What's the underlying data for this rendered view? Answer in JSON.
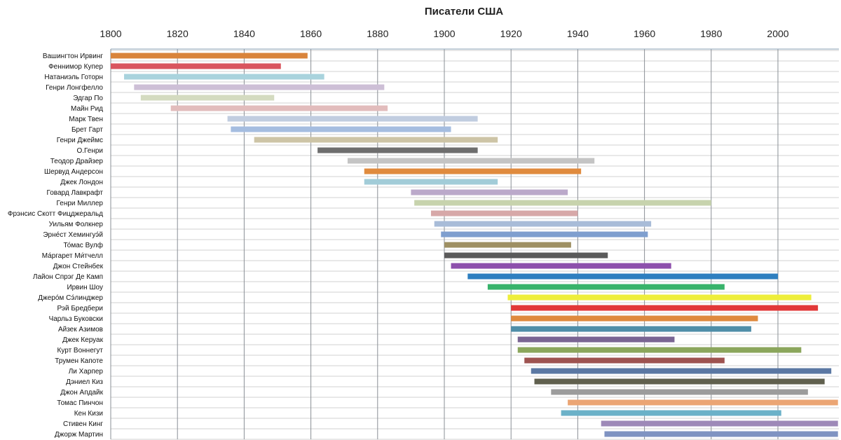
{
  "chart_data": {
    "type": "bar",
    "subtype": "timeline",
    "title": "Писатели США",
    "xlim": [
      1800,
      2018
    ],
    "x_ticks": [
      "1800",
      "1820",
      "1840",
      "1860",
      "1880",
      "1900",
      "1920",
      "1940",
      "1960",
      "1980",
      "2000"
    ],
    "x_axis_position": "top",
    "grid": {
      "vertical": true,
      "horizontal": true
    },
    "legend": "none",
    "series": [
      {
        "label": "Вашингтон Ирвинг",
        "start": 1800,
        "end": 1859,
        "color": "#d9843b"
      },
      {
        "label": "Феннимор Купер",
        "start": 1800,
        "end": 1851,
        "color": "#d9555e"
      },
      {
        "label": "Натаниэль Готорн",
        "start": 1804,
        "end": 1864,
        "color": "#a9d3dd"
      },
      {
        "label": "Генри Лонгфелло",
        "start": 1807,
        "end": 1882,
        "color": "#cdbfd6"
      },
      {
        "label": "Эдгар По",
        "start": 1809,
        "end": 1849,
        "color": "#d4dbc0"
      },
      {
        "label": "Майн Рид",
        "start": 1818,
        "end": 1883,
        "color": "#e2bcbc"
      },
      {
        "label": "Марк Твен",
        "start": 1835,
        "end": 1910,
        "color": "#c1cde0"
      },
      {
        "label": "Брет Гарт",
        "start": 1836,
        "end": 1902,
        "color": "#a5bde0"
      },
      {
        "label": "Генри Джеймс",
        "start": 1843,
        "end": 1916,
        "color": "#cdc4a6"
      },
      {
        "label": "О.Генри",
        "start": 1862,
        "end": 1910,
        "color": "#6e6e6e"
      },
      {
        "label": "Теодор Драйзер",
        "start": 1871,
        "end": 1945,
        "color": "#c4c4c4"
      },
      {
        "label": "Шервуд Андерсон",
        "start": 1876,
        "end": 1941,
        "color": "#e08b3e"
      },
      {
        "label": "Джек Лондон",
        "start": 1876,
        "end": 1916,
        "color": "#a2ccd8"
      },
      {
        "label": "Говард Лавкрафт",
        "start": 1890,
        "end": 1937,
        "color": "#bba9ca"
      },
      {
        "label": "Генри Миллер",
        "start": 1891,
        "end": 1980,
        "color": "#c7d3ad"
      },
      {
        "label": "Фрэнсис Скотт Фицджеральд",
        "start": 1896,
        "end": 1940,
        "color": "#d7a8a8"
      },
      {
        "label": "Уильям Фолкнер",
        "start": 1897,
        "end": 1962,
        "color": "#a8bcd8"
      },
      {
        "label": "Эрне́ст Хемингуэ́й",
        "start": 1899,
        "end": 1961,
        "color": "#7f9fcf"
      },
      {
        "label": "То́мас Вулф",
        "start": 1900,
        "end": 1938,
        "color": "#9e9063"
      },
      {
        "label": "Ма́ргарет Ми́тчелл",
        "start": 1900,
        "end": 1949,
        "color": "#5a5a5a"
      },
      {
        "label": "Джон Стейнбек",
        "start": 1902,
        "end": 1968,
        "color": "#8d4fac"
      },
      {
        "label": "Лайон Спрэг Де Камп",
        "start": 1907,
        "end": 2000,
        "color": "#2e7fc0"
      },
      {
        "label": "Ирвин Шоу",
        "start": 1913,
        "end": 1984,
        "color": "#38b36b"
      },
      {
        "label": "Джеро́м Сэ́линджер",
        "start": 1919,
        "end": 2010,
        "color": "#eeee3a"
      },
      {
        "label": "Рэй Бредбери",
        "start": 1920,
        "end": 2012,
        "color": "#e23838"
      },
      {
        "label": "Чарльз Буковски",
        "start": 1920,
        "end": 1994,
        "color": "#df8a3e"
      },
      {
        "label": "Айзек Азимов",
        "start": 1920,
        "end": 1992,
        "color": "#4f8ea8"
      },
      {
        "label": "Джек Керуак",
        "start": 1922,
        "end": 1969,
        "color": "#7a6593"
      },
      {
        "label": "Курт Воннегут",
        "start": 1922,
        "end": 2007,
        "color": "#8ba65c"
      },
      {
        "label": "Трумен Капоте",
        "start": 1924,
        "end": 1984,
        "color": "#9e5350"
      },
      {
        "label": "Ли Харпер",
        "start": 1926,
        "end": 2016,
        "color": "#5b78a3"
      },
      {
        "label": "Дэниел Киз",
        "start": 1927,
        "end": 2014,
        "color": "#60604e"
      },
      {
        "label": "Джон Апдайк",
        "start": 1932,
        "end": 2009,
        "color": "#9c9c9c"
      },
      {
        "label": "Томас Пинчон",
        "start": 1937,
        "end": 2018,
        "color": "#eba574"
      },
      {
        "label": "Кен Кизи",
        "start": 1935,
        "end": 2001,
        "color": "#6bb1c8"
      },
      {
        "label": "Стивен Кинг",
        "start": 1947,
        "end": 2018,
        "color": "#9e89b8"
      },
      {
        "label": "Джорж Мартин",
        "start": 1948,
        "end": 2018,
        "color": "#7f93c2"
      }
    ]
  },
  "colors": {
    "grid_vertical": "#8a8f96",
    "grid_horizontal": "#d2d2d2",
    "axis": "#8aa0b6",
    "text": "#222222"
  }
}
